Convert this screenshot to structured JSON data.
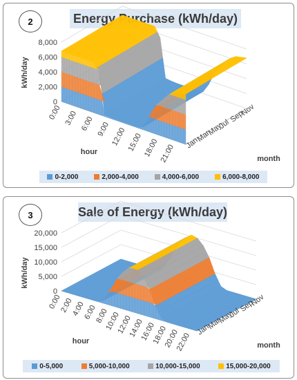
{
  "colors": {
    "blue": "#5b9bd5",
    "orange": "#ed7d31",
    "gray": "#a5a5a5",
    "yellow": "#ffc000",
    "title_bg": "#dde8f5"
  },
  "chart_data": [
    {
      "type": "surface",
      "panel_number": "2",
      "title": "Energy Purchase (kWh/day)",
      "ylabel": "kWh/day",
      "xlabel": "hour",
      "zlabel": "month",
      "ylim": [
        0,
        8000
      ],
      "y_ticks": [
        "8,000",
        "6,000",
        "4,000",
        "2,000",
        "0"
      ],
      "x_ticks": [
        "0:00",
        "3:00",
        "6:00",
        "9:00",
        "12:00",
        "15:00",
        "18:00",
        "21:00"
      ],
      "z_ticks": [
        "Jan",
        "Mar",
        "May",
        "Jul",
        "Sep",
        "Nov"
      ],
      "legend": [
        "0-2,000",
        "2,000-4,000",
        "4,000-6,000",
        "6,000-8,000"
      ],
      "hour_profile_kwh": [
        [
          0,
          6800
        ],
        [
          3,
          6800
        ],
        [
          6,
          6800
        ],
        [
          7,
          5500
        ],
        [
          8,
          300
        ],
        [
          9,
          200
        ],
        [
          10,
          150
        ],
        [
          11,
          150
        ],
        [
          12,
          150
        ],
        [
          13,
          150
        ],
        [
          14,
          150
        ],
        [
          15,
          300
        ],
        [
          16,
          1500
        ],
        [
          17,
          3200
        ],
        [
          18,
          4300
        ],
        [
          19,
          5200
        ],
        [
          20,
          6000
        ],
        [
          21,
          6500
        ],
        [
          23,
          6800
        ]
      ]
    },
    {
      "type": "surface",
      "panel_number": "3",
      "title": "Sale of Energy (kWh/day)",
      "ylabel": "kWh/day",
      "xlabel": "hour",
      "zlabel": "month",
      "ylim": [
        0,
        20000
      ],
      "y_ticks": [
        "20,000",
        "15,000",
        "10,000",
        "5,000",
        "0"
      ],
      "x_ticks": [
        "0:00",
        "2:00",
        "4:00",
        "6:00",
        "8:00",
        "10:00",
        "12:00",
        "14:00",
        "16:00",
        "18:00",
        "20:00",
        "22:00"
      ],
      "z_ticks": [
        "Jan",
        "Mar",
        "May",
        "Jul",
        "Sep",
        "Nov"
      ],
      "legend": [
        "0-5,000",
        "5,000-10,000",
        "10,000-15,000",
        "15,000-20,000"
      ],
      "hour_profile_kwh": [
        [
          0,
          0
        ],
        [
          6,
          0
        ],
        [
          7,
          800
        ],
        [
          8,
          4000
        ],
        [
          9,
          8000
        ],
        [
          10,
          11500
        ],
        [
          11,
          14000
        ],
        [
          12,
          15500
        ],
        [
          13,
          15000
        ],
        [
          14,
          13000
        ],
        [
          15,
          9500
        ],
        [
          16,
          4500
        ],
        [
          17,
          800
        ],
        [
          18,
          0
        ],
        [
          23,
          0
        ]
      ]
    }
  ]
}
